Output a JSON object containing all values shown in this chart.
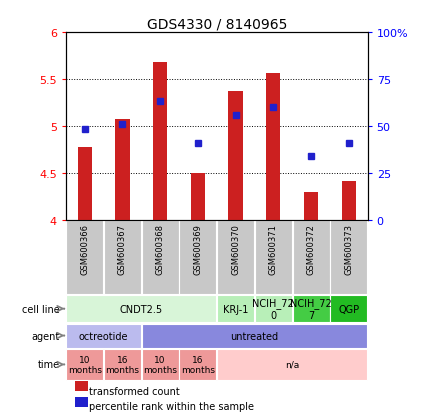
{
  "title": "GDS4330 / 8140965",
  "samples": [
    "GSM600366",
    "GSM600367",
    "GSM600368",
    "GSM600369",
    "GSM600370",
    "GSM600371",
    "GSM600372",
    "GSM600373"
  ],
  "bar_values": [
    4.78,
    5.08,
    5.68,
    4.5,
    5.38,
    5.57,
    4.3,
    4.42
  ],
  "dot_values": [
    4.97,
    5.02,
    5.27,
    4.82,
    5.12,
    5.2,
    4.68,
    4.82
  ],
  "ylim": [
    4.0,
    6.0
  ],
  "yticks": [
    4.0,
    4.5,
    5.0,
    5.5,
    6.0
  ],
  "ytick_labels": [
    "4",
    "4.5",
    "5",
    "5.5",
    "6"
  ],
  "y2ticks": [
    0,
    25,
    50,
    75,
    100
  ],
  "y2tick_labels": [
    "0",
    "25",
    "50",
    "75",
    "100%"
  ],
  "bar_color": "#cc2020",
  "dot_color": "#2020cc",
  "bar_bottom": 4.0,
  "sample_box_color": "#c8c8c8",
  "cell_line_data": {
    "spans": [
      {
        "start": 0,
        "end": 3,
        "label": "CNDT2.5",
        "color": "#d8f5d8"
      },
      {
        "start": 4,
        "end": 4,
        "label": "KRJ-1",
        "color": "#b8efb8"
      },
      {
        "start": 5,
        "end": 5,
        "label": "NCIH_72\n0",
        "color": "#b8efb8"
      },
      {
        "start": 6,
        "end": 6,
        "label": "NCIH_72\n7",
        "color": "#44cc44"
      },
      {
        "start": 7,
        "end": 7,
        "label": "QGP",
        "color": "#22bb22"
      }
    ]
  },
  "agent_data": {
    "spans": [
      {
        "start": 0,
        "end": 1,
        "label": "octreotide",
        "color": "#bbbbee"
      },
      {
        "start": 2,
        "end": 7,
        "label": "untreated",
        "color": "#8888dd"
      }
    ]
  },
  "time_data": {
    "spans": [
      {
        "start": 0,
        "end": 0,
        "label": "10\nmonths",
        "color": "#ee9999"
      },
      {
        "start": 1,
        "end": 1,
        "label": "16\nmonths",
        "color": "#ee9999"
      },
      {
        "start": 2,
        "end": 2,
        "label": "10\nmonths",
        "color": "#ee9999"
      },
      {
        "start": 3,
        "end": 3,
        "label": "16\nmonths",
        "color": "#ee9999"
      },
      {
        "start": 4,
        "end": 7,
        "label": "n/a",
        "color": "#ffcccc"
      }
    ]
  },
  "legend_items": [
    {
      "color": "#cc2020",
      "label": "transformed count"
    },
    {
      "color": "#2020cc",
      "label": "percentile rank within the sample"
    }
  ]
}
